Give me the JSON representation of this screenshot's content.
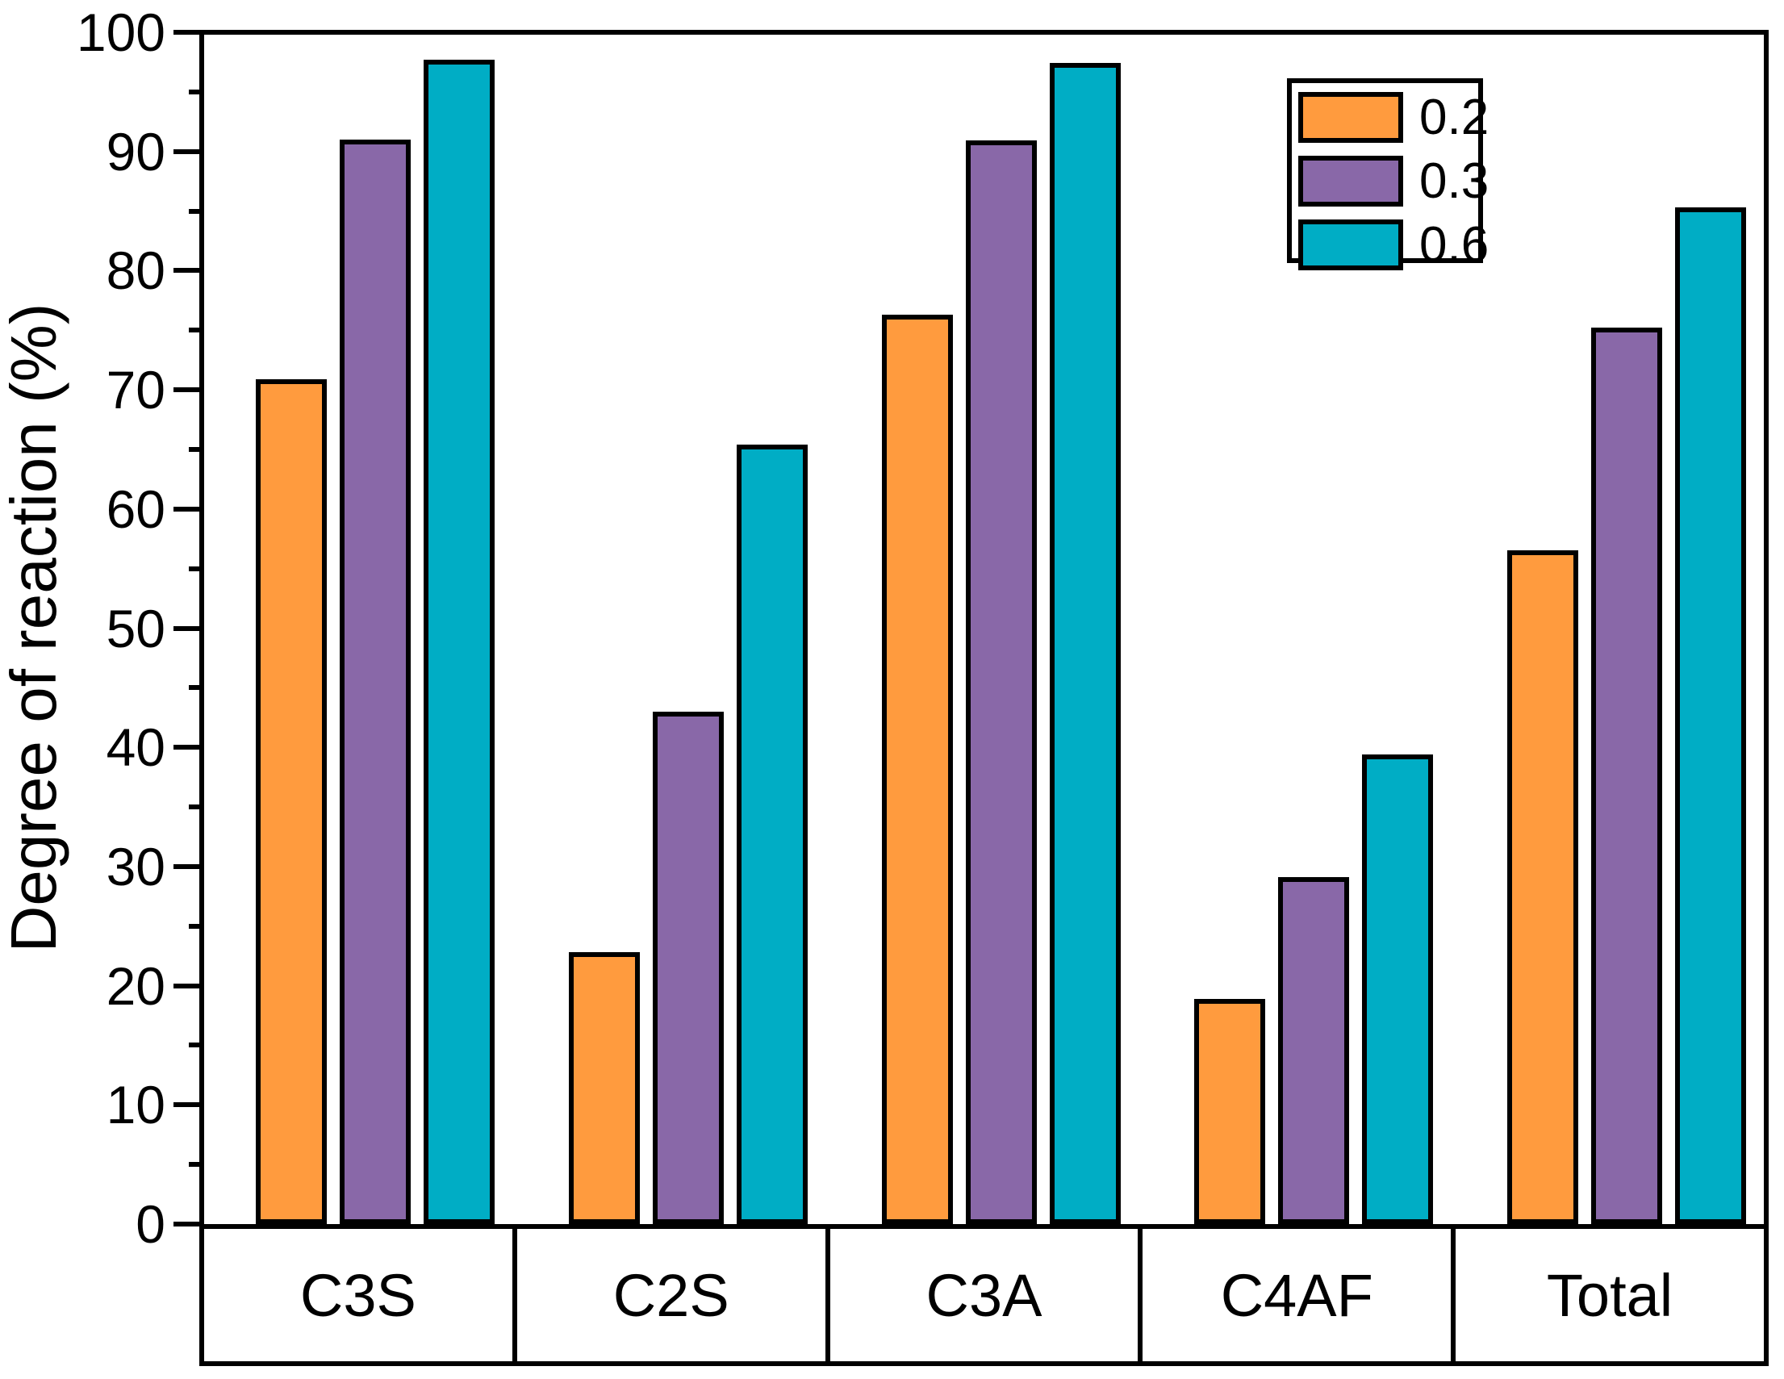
{
  "chart_data": {
    "type": "bar",
    "title": "",
    "ylabel": "Degree of reaction (%)",
    "xlabel": "",
    "ylim": [
      0,
      100
    ],
    "y_major_step": 10,
    "y_minor_step": 5,
    "y_tick_labels": [
      "0",
      "10",
      "20",
      "30",
      "40",
      "50",
      "60",
      "70",
      "80",
      "90",
      "100"
    ],
    "grid": false,
    "legend_position": "top-right-inside",
    "categories": [
      "C3S",
      "C2S",
      "C3A",
      "C4AF",
      "Total"
    ],
    "series": [
      {
        "name": "0.2",
        "color": "#FF9B3E",
        "values": [
          70.9,
          22.8,
          76.3,
          18.9,
          56.5
        ]
      },
      {
        "name": "0.3",
        "color": "#8968A8",
        "values": [
          91.0,
          43.0,
          90.9,
          29.1,
          75.2
        ]
      },
      {
        "name": "0.6",
        "color": "#00ADC5",
        "values": [
          97.7,
          65.4,
          97.4,
          39.4,
          85.3
        ]
      }
    ],
    "bar_outline_color": "#000000",
    "axis_color": "#000000",
    "background_color": "#FFFFFF"
  }
}
